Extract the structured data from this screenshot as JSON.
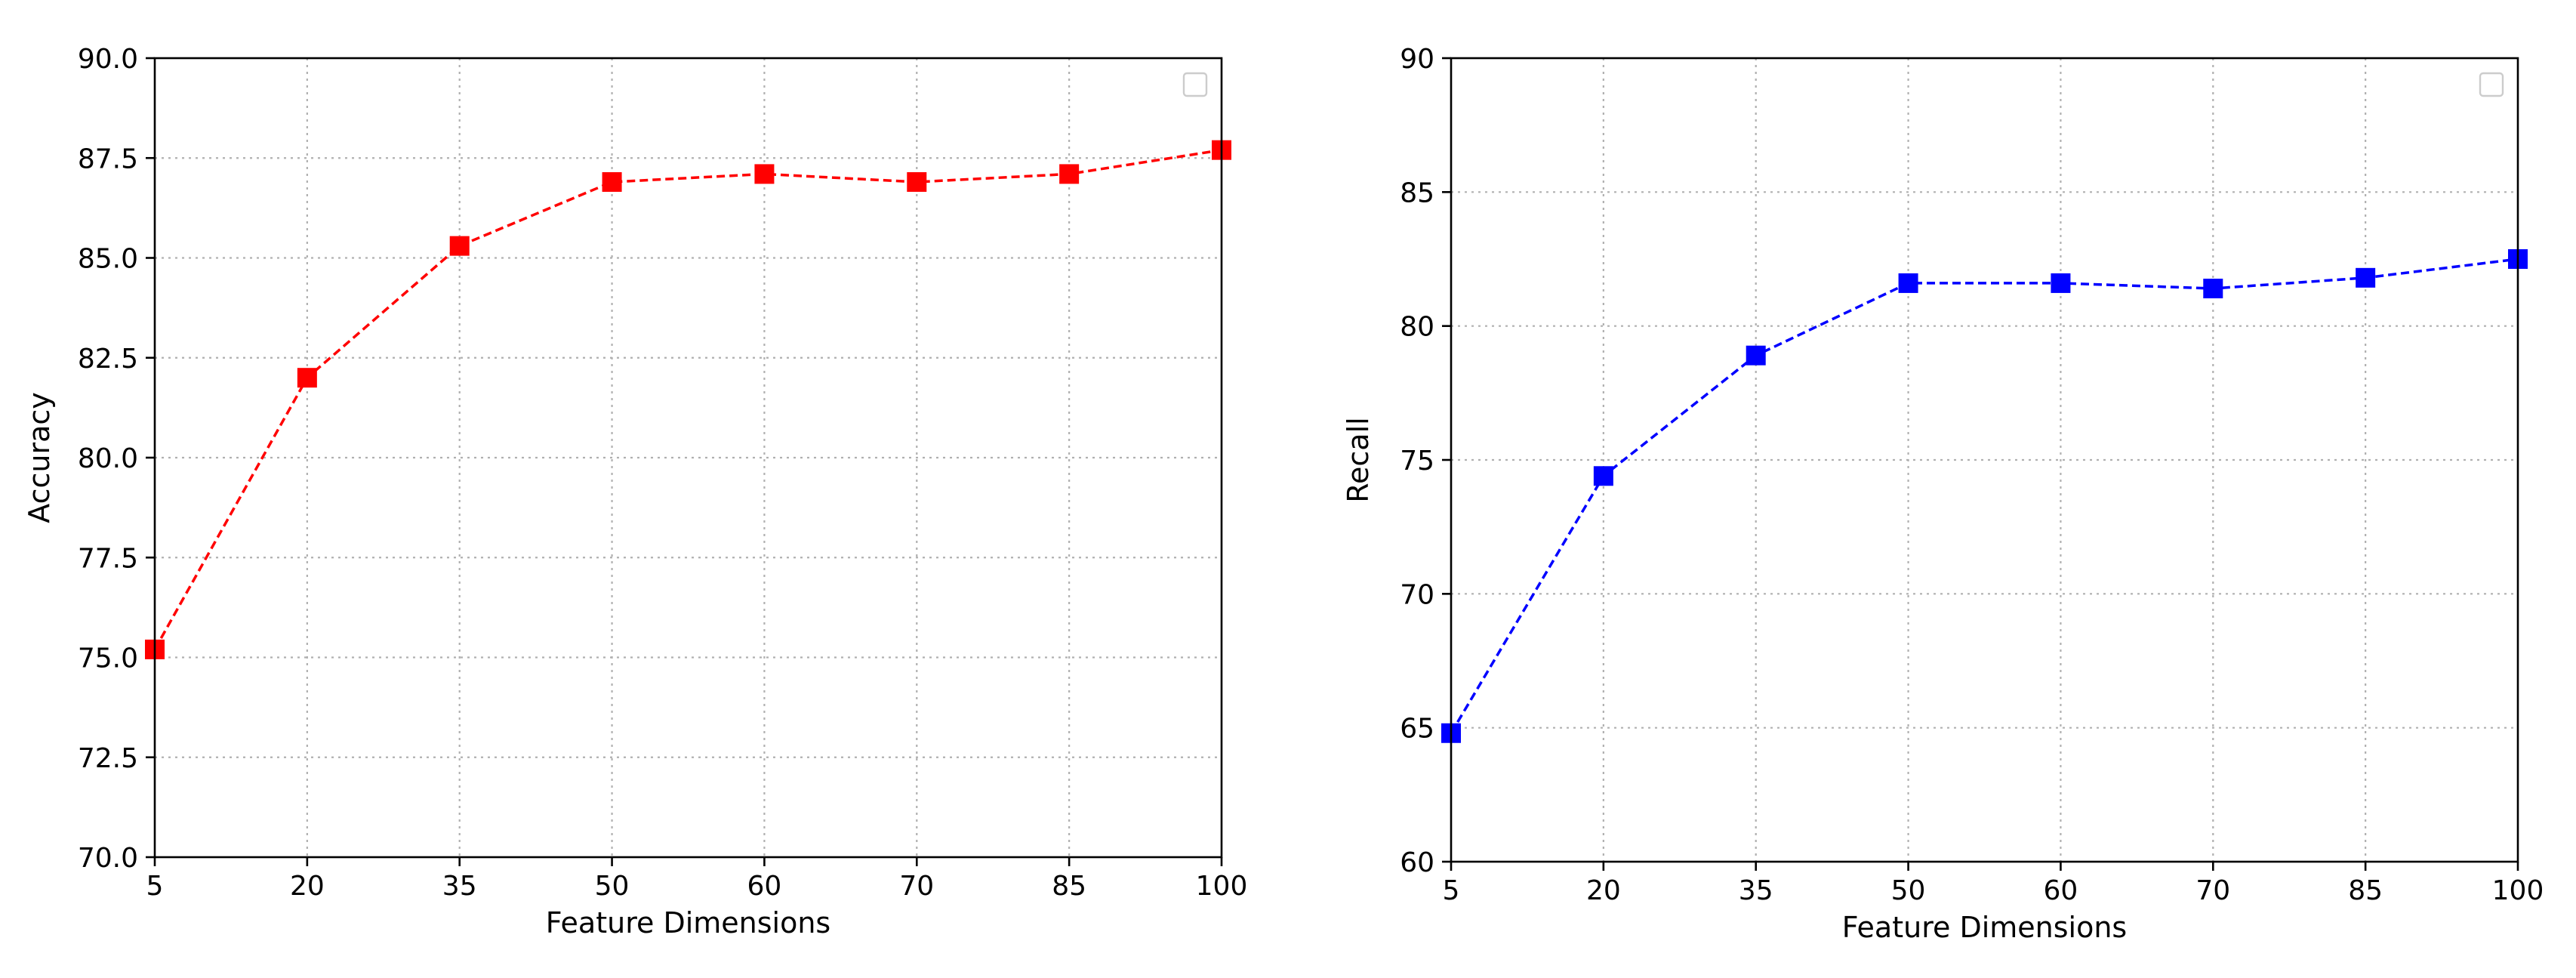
{
  "chart_data": [
    {
      "type": "line",
      "categories": [
        "5",
        "20",
        "35",
        "50",
        "60",
        "70",
        "85",
        "100"
      ],
      "series": [
        {
          "values": [
            75.2,
            82.0,
            85.3,
            86.9,
            87.1,
            86.9,
            87.1,
            87.7
          ],
          "color": "#ff0000",
          "marker": "square",
          "line_style": "dashed"
        }
      ],
      "xlabel": "Feature Dimensions",
      "ylabel": "Accuracy",
      "ylim": [
        70.0,
        90.0
      ],
      "yticks": [
        "70.0",
        "72.5",
        "75.0",
        "77.5",
        "80.0",
        "82.5",
        "85.0",
        "87.5",
        "90.0"
      ],
      "grid": true,
      "legend": "top-right, empty"
    },
    {
      "type": "line",
      "categories": [
        "5",
        "20",
        "35",
        "50",
        "60",
        "70",
        "85",
        "100"
      ],
      "series": [
        {
          "values": [
            64.8,
            74.4,
            78.9,
            81.6,
            81.6,
            81.4,
            81.8,
            82.5
          ],
          "color": "#0000ff",
          "marker": "square",
          "line_style": "dashed"
        }
      ],
      "xlabel": "Feature Dimensions",
      "ylabel": "Recall",
      "ylim": [
        60,
        90
      ],
      "yticks": [
        "60",
        "65",
        "70",
        "75",
        "80",
        "85",
        "90"
      ],
      "grid": true,
      "legend": "top-right, empty"
    }
  ]
}
